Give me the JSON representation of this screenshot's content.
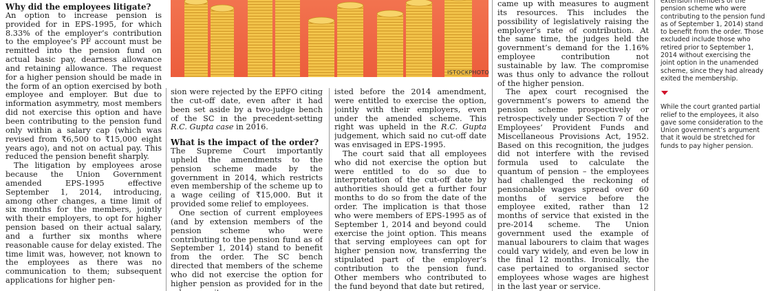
{
  "colors": {
    "photo_bg": "#ec5d3c",
    "coin": "#f3c44b",
    "coin_dark": "#c98e1f",
    "marker": "#d0112b"
  },
  "photo": {
    "credit": "ISTOCKPHOTO",
    "icon": "rupee-coin-stacks"
  },
  "col1": {
    "heading": "Why did the employees litigate?",
    "p1": "An option to increase pension is provided for in EPS-1995, for which 8.33% of the employer’s contribution to the employee’s PF account must be remitted into the pension fund on actual basic pay, dearness allowance and retaining allowance. The request for a higher pension should be made in the form of an option exercised by both employee and employer. But due to information asymmetry, most members did not exercise this option and have been contributing to the pension fund only within a salary cap (which was revised from ₹6,500 to ₹15,000 eight years ago), and not on actual pay. This reduced the pension benefit sharply.",
    "p2": "The litigation by employees arose because the Union Government amended EPS-1995 effective September 1, 2014, introducing, among other changes, a time limit of six months for the members, jointly with their employers, to opt for higher pension based on their actual salary, and a further six months where reasonable cause for delay existed. The time limit was, however, not known to the employees as there was no communication to them; subsequent applications for higher pen-"
  },
  "col2": {
    "p1": "sion were rejected by the EPFO citing the cut-off date, even after it had been set aside by a two-judge bench of the SC in the precedent-setting ",
    "p1_italic": "R.C. Gupta case",
    "p1_end": " in 2016.",
    "heading": "What is the impact of the order?",
    "p2": "The Supreme Court importantly upheld the amendments to the pension scheme made by the government in 2014, which restricts even membership of the scheme up to a wage ceiling of ₹15,000. But it provided some relief to employees.",
    "p3": "One section of current employees (and by extension members of the pension scheme who were contributing to the pension fund as of September 1, 2014) stand to benefit from the order. The SC bench directed that members of the scheme who did not exercise the option for higher pension as provided for in the scheme as it ex-"
  },
  "col3": {
    "p1": "isted before the 2014 amendment, were entitled to exercise the option, jointly with their employers, even under the amended scheme. This right was upheld in the ",
    "p1_italic": "R.C. Gupta",
    "p1_end": " judgement, which said no cut-off date was envisaged in EPS-1995.",
    "p2": "The court said that all employees who did not exercise the option but were entitled to do so due to interpretation of the cut-off date by authorities should get a further four months to do so from the date of the order. The implication is that those who were members of EPS-1995 as of September 1, 2014 and beyond could exercise the joint option. This means that serving employees can opt for higher pension now, transferring the stipulated part of the employer’s contribution to the pension fund. Other members who contributed to the fund beyond that date but retired,"
  },
  "col4": {
    "p1": "came up with measures to augment its resources. This includes the possibility of legislatively raising the employer’s rate of contribution. At the same time, the judges held the government’s demand for the 1.16% employee contribution not sustainable by law. The compromise was thus only to advance the rollout of the higher pension.",
    "p2": "The apex court recognised the government’s powers to amend the pension scheme prospectively or retrospectively under Section 7 of the Employees’ Provident Funds and Miscellaneous Provisions Act, 1952. Based on this recognition, the judges did not interfere with the revised formula used to calculate the quantum of pension – the employees had challenged the reckoning of pensionable wages spread over 60 months of service before the employee exited, rather than 12 months of service that existed in the pre-2014 scheme. The Union government used the example of manual labourers to claim that wages could vary widely, and even be low in the final 12 months. Ironically, the case pertained to organised sector employees whose wages are highest in the last year or service."
  },
  "sidebar": {
    "p1": "extension members of the pension scheme who were contributing to the pension fund as of September 1, 2014) stand to benefit from the order. Those excluded include those who retired prior to September 1, 2014 without exercising the joint option in the unamended scheme, since they had already exited the membership.",
    "p2": "While the court granted partial relief to the employees, it also gave some consideration to the Union government’s argument that it would be stretched for funds to pay higher pension.",
    "marker_icon": "red-triangle-marker-icon"
  }
}
